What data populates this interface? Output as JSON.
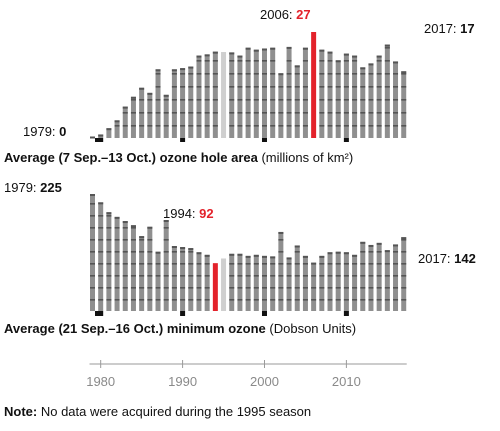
{
  "chart_data": [
    {
      "type": "bar",
      "title_bold": "Average (7 Sep.–13 Oct.) ozone hole area",
      "title_unit": "(millions of km²)",
      "start_label": {
        "year": "1979:",
        "value": "0"
      },
      "peak_label": {
        "year": "2006:",
        "value": "27"
      },
      "end_label": {
        "year": "2017:",
        "value": "17"
      },
      "highlight_year": 2006,
      "highlight_color": "#e3222b",
      "ylim": [
        0,
        28
      ],
      "years": [
        1979,
        1980,
        1981,
        1982,
        1983,
        1984,
        1985,
        1986,
        1987,
        1988,
        1989,
        1990,
        1991,
        1992,
        1993,
        1994,
        1995,
        1996,
        1997,
        1998,
        1999,
        2000,
        2001,
        2002,
        2003,
        2004,
        2005,
        2006,
        2007,
        2008,
        2009,
        2010,
        2011,
        2012,
        2013,
        2014,
        2015,
        2016,
        2017
      ],
      "values": [
        0.1,
        0.9,
        2.5,
        4.5,
        8.0,
        10.5,
        12.8,
        11.5,
        17.5,
        11.0,
        17.5,
        17.8,
        18.2,
        21.0,
        21.3,
        22.0,
        null,
        21.8,
        21.0,
        23.0,
        22.5,
        22.8,
        23.0,
        16.5,
        23.2,
        18.5,
        23.0,
        27.0,
        22.5,
        22.0,
        19.8,
        21.5,
        21.0,
        18.0,
        19.0,
        21.0,
        23.8,
        19.5,
        17.0
      ]
    },
    {
      "type": "bar",
      "title_bold": "Average (21 Sep.–16 Oct.) minimum ozone",
      "title_unit": "(Dobson Units)",
      "start_label": {
        "year": "1979:",
        "value": "225"
      },
      "low_label": {
        "year": "1994:",
        "value": "92"
      },
      "end_label": {
        "year": "2017:",
        "value": "142"
      },
      "highlight_year": 1994,
      "highlight_color": "#e3222b",
      "ylim": [
        0,
        230
      ],
      "years": [
        1979,
        1980,
        1981,
        1982,
        1983,
        1984,
        1985,
        1986,
        1987,
        1988,
        1989,
        1990,
        1991,
        1992,
        1993,
        1994,
        1995,
        1996,
        1997,
        1998,
        1999,
        2000,
        2001,
        2002,
        2003,
        2004,
        2005,
        2006,
        2007,
        2008,
        2009,
        2010,
        2011,
        2012,
        2013,
        2014,
        2015,
        2016,
        2017
      ],
      "values": [
        225,
        209,
        190,
        181,
        173,
        165,
        144,
        162,
        114,
        175,
        125,
        123,
        121,
        113,
        108,
        92,
        null,
        110,
        110,
        106,
        108,
        106,
        105,
        152,
        103,
        126,
        106,
        93,
        106,
        113,
        114,
        113,
        108,
        133,
        127,
        131,
        117,
        128,
        142
      ]
    }
  ],
  "x_axis": {
    "ticks": [
      "1980",
      "1990",
      "2000",
      "2010"
    ],
    "tick_years": [
      1980,
      1990,
      2000,
      2010
    ]
  },
  "note": {
    "label": "Note:",
    "text": "No data were acquired during the 1995 season"
  },
  "colors": {
    "bar": "#8f8f8f",
    "bar_band": "#555555",
    "missing": "#cfcfcf",
    "highlight": "#e3222b",
    "axis": "#9a9a9a"
  }
}
